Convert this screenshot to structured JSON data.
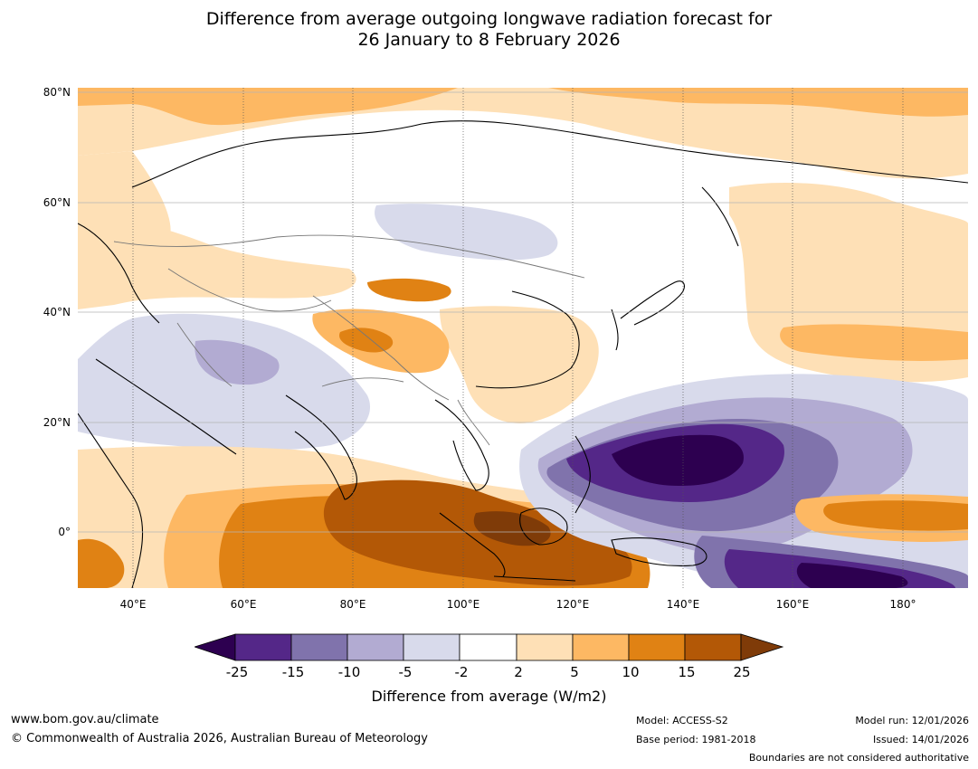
{
  "title": {
    "line1": "Difference from average outgoing longwave radiation forecast for",
    "line2": "26 January to 8 February 2026"
  },
  "map": {
    "lat_labels": [
      "80°N",
      "60°N",
      "40°N",
      "20°N",
      "0°"
    ],
    "lon_labels": [
      "40°E",
      "60°E",
      "80°E",
      "100°E",
      "120°E",
      "140°E",
      "160°E",
      "180°"
    ]
  },
  "colorbar": {
    "ticks": [
      "-25",
      "-15",
      "-10",
      "-5",
      "-2",
      "2",
      "5",
      "10",
      "15",
      "25"
    ],
    "label": "Difference from average (W/m2)",
    "colors": {
      "lt_-25": "#2d0050",
      "-25_-15": "#542788",
      "-15_-10": "#8073ac",
      "-10_-5": "#b2abd2",
      "-5_-2": "#d8daeb",
      "-2_2": "#ffffff",
      "2_5": "#fee0b6",
      "5_10": "#fdb863",
      "10_15": "#e08214",
      "15_25": "#b35806",
      "gt_25": "#7f3b08"
    }
  },
  "footer": {
    "website": "www.bom.gov.au/climate",
    "copyright": "© Commonwealth of Australia 2026, Australian Bureau of Meteorology",
    "model": "Model: ACCESS-S2",
    "base_period": "Base period: 1981-2018",
    "model_run": "Model run: 12/01/2026",
    "issued": "Issued: 14/01/2026",
    "disclaimer": "Boundaries are not considered authoritative"
  }
}
